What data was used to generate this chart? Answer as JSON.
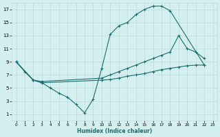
{
  "background_color": "#d4efef",
  "grid_color": "#c0dcdc",
  "line_color": "#1a6b6b",
  "marker": "+",
  "markersize": 3,
  "linewidth": 0.8,
  "xlabel": "Humidex (Indice chaleur)",
  "xlim": [
    -0.5,
    23.5
  ],
  "ylim": [
    0,
    18
  ],
  "xticks": [
    0,
    1,
    2,
    3,
    4,
    5,
    6,
    7,
    8,
    9,
    10,
    11,
    12,
    13,
    14,
    15,
    16,
    17,
    18,
    19,
    20,
    21,
    22,
    23
  ],
  "yticks": [
    1,
    3,
    5,
    7,
    9,
    11,
    13,
    15,
    17
  ],
  "series1": [
    [
      0,
      9.0
    ],
    [
      1,
      7.5
    ],
    [
      2,
      6.2
    ],
    [
      3,
      5.8
    ],
    [
      4,
      5.0
    ],
    [
      5,
      4.2
    ],
    [
      6,
      3.6
    ],
    [
      7,
      2.5
    ],
    [
      8,
      1.2
    ],
    [
      9,
      3.3
    ],
    [
      10,
      8.0
    ],
    [
      11,
      13.2
    ],
    [
      12,
      14.5
    ],
    [
      13,
      15.0
    ],
    [
      14,
      16.2
    ],
    [
      15,
      17.0
    ],
    [
      16,
      17.5
    ],
    [
      17,
      17.5
    ],
    [
      18,
      16.8
    ],
    [
      22,
      8.5
    ]
  ],
  "series2": [
    [
      0,
      9.0
    ],
    [
      2,
      6.2
    ],
    [
      3,
      6.0
    ],
    [
      10,
      6.5
    ],
    [
      11,
      7.0
    ],
    [
      12,
      7.5
    ],
    [
      13,
      8.0
    ],
    [
      14,
      8.5
    ],
    [
      15,
      9.0
    ],
    [
      16,
      9.5
    ],
    [
      17,
      10.0
    ],
    [
      18,
      10.5
    ],
    [
      19,
      13.0
    ],
    [
      20,
      11.0
    ],
    [
      21,
      10.5
    ],
    [
      22,
      9.5
    ]
  ],
  "series3": [
    [
      0,
      9.0
    ],
    [
      2,
      6.2
    ],
    [
      3,
      5.8
    ],
    [
      10,
      6.2
    ],
    [
      11,
      6.3
    ],
    [
      12,
      6.5
    ],
    [
      13,
      6.8
    ],
    [
      14,
      7.0
    ],
    [
      15,
      7.2
    ],
    [
      16,
      7.5
    ],
    [
      17,
      7.8
    ],
    [
      18,
      8.0
    ],
    [
      19,
      8.2
    ],
    [
      20,
      8.4
    ],
    [
      21,
      8.5
    ],
    [
      22,
      8.5
    ]
  ]
}
